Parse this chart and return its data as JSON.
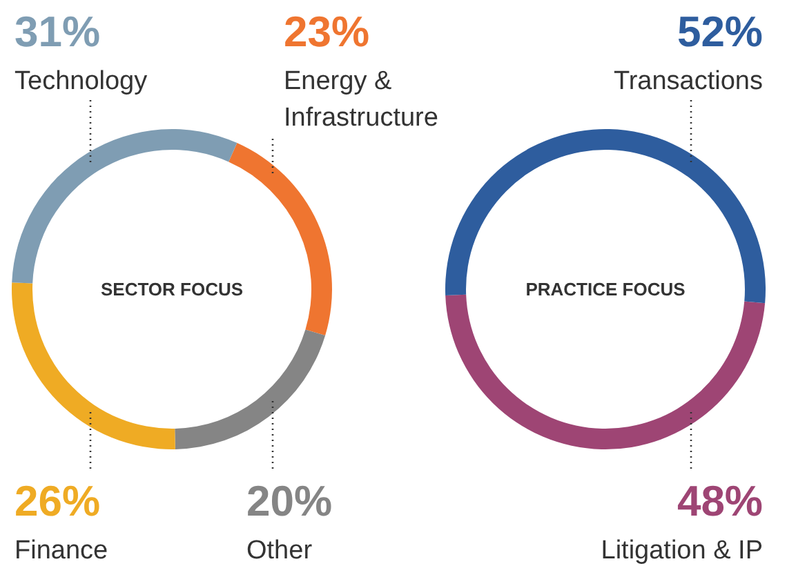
{
  "chart_data": [
    {
      "type": "donut",
      "title": "SECTOR FOCUS",
      "categories": [
        "Energy & Infrastructure",
        "Other",
        "Finance",
        "Technology"
      ],
      "values": [
        23,
        20,
        26,
        31
      ],
      "colors": [
        "#ef7530",
        "#858585",
        "#efab24",
        "#7f9db3"
      ],
      "value_labels": [
        "23%",
        "20%",
        "26%",
        "31%"
      ]
    },
    {
      "type": "donut",
      "title": "PRACTICE FOCUS",
      "categories": [
        "Litigation & IP",
        "Transactions"
      ],
      "values": [
        48,
        52
      ],
      "colors": [
        "#9e4574",
        "#2e5d9e"
      ],
      "value_labels": [
        "48%",
        "52%"
      ]
    }
  ]
}
